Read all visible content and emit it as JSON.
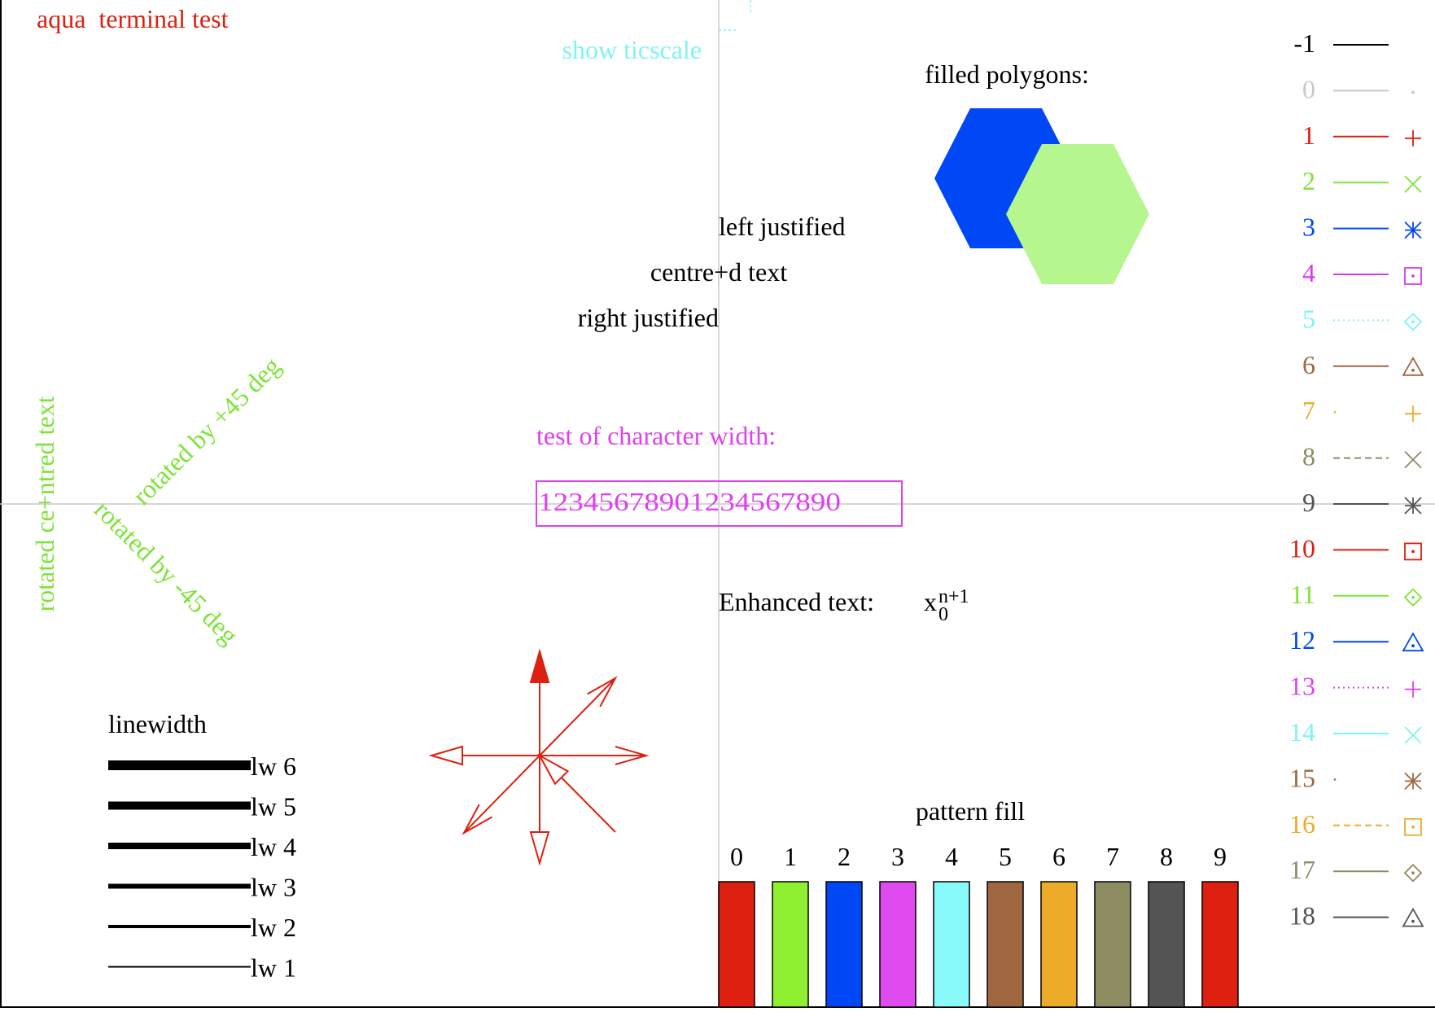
{
  "title": "aqua  terminal test",
  "ticscale_label": "show ticscale",
  "filled_polygons": {
    "label": "filled polygons:",
    "colors": [
      "#0047f5",
      "#b5f68e"
    ]
  },
  "justification": {
    "left": "left justified",
    "centre": "centre+d text",
    "right": "right justified"
  },
  "rotated_text": {
    "vertical": "rotated ce+ntred text",
    "plus45": "rotated by +45 deg",
    "minus45": "rotated by -45 deg",
    "color": "#7ee339"
  },
  "char_width": {
    "label": "test of character width:",
    "sample": "12345678901234567890",
    "color": "#e040f0"
  },
  "enhanced_text": {
    "label": "Enhanced text:",
    "base": "x",
    "subscript": "0",
    "superscript": "n+1"
  },
  "linewidth": {
    "label": "linewidth",
    "items": [
      {
        "label": "lw 6",
        "width": 6
      },
      {
        "label": "lw 5",
        "width": 5
      },
      {
        "label": "lw 4",
        "width": 4
      },
      {
        "label": "lw 3",
        "width": 3
      },
      {
        "label": "lw 2",
        "width": 2
      },
      {
        "label": "lw 1",
        "width": 1
      }
    ]
  },
  "pattern_fill": {
    "label": "pattern fill",
    "items": [
      {
        "label": "0",
        "color": "#dd2010"
      },
      {
        "label": "1",
        "color": "#8ef030"
      },
      {
        "label": "2",
        "color": "#0047f5"
      },
      {
        "label": "3",
        "color": "#e04bf0"
      },
      {
        "label": "4",
        "color": "#88fafa"
      },
      {
        "label": "5",
        "color": "#a06640"
      },
      {
        "label": "6",
        "color": "#ecac2a"
      },
      {
        "label": "7",
        "color": "#8e8c62"
      },
      {
        "label": "8",
        "color": "#545454"
      },
      {
        "label": "9",
        "color": "#dd2010"
      }
    ]
  },
  "arrow_color": "#dd2010",
  "linetypes": [
    {
      "label": "-1",
      "color": "#000000",
      "dash": "solid",
      "symbol": "none"
    },
    {
      "label": "0",
      "color": "#c8c8c8",
      "dash": "solid",
      "symbol": "dot"
    },
    {
      "label": "1",
      "color": "#dd2010",
      "dash": "solid",
      "symbol": "plus"
    },
    {
      "label": "2",
      "color": "#7ee339",
      "dash": "solid",
      "symbol": "cross"
    },
    {
      "label": "3",
      "color": "#0047f5",
      "dash": "solid",
      "symbol": "star"
    },
    {
      "label": "4",
      "color": "#d43cec",
      "dash": "solid",
      "symbol": "box"
    },
    {
      "label": "5",
      "color": "#7ef4f4",
      "dash": "dotted",
      "symbol": "diamond"
    },
    {
      "label": "6",
      "color": "#a06640",
      "dash": "solid",
      "symbol": "triangle"
    },
    {
      "label": "7",
      "color": "#ecac2a",
      "dash": "point",
      "symbol": "plus"
    },
    {
      "label": "8",
      "color": "#8e8c62",
      "dash": "dashed",
      "symbol": "cross"
    },
    {
      "label": "9",
      "color": "#545454",
      "dash": "solid",
      "symbol": "star"
    },
    {
      "label": "10",
      "color": "#dd2010",
      "dash": "solid",
      "symbol": "box"
    },
    {
      "label": "11",
      "color": "#7ee339",
      "dash": "solid",
      "symbol": "diamond"
    },
    {
      "label": "12",
      "color": "#0047f5",
      "dash": "solid",
      "symbol": "triangle"
    },
    {
      "label": "13",
      "color": "#e040f0",
      "dash": "dotted",
      "symbol": "plus"
    },
    {
      "label": "14",
      "color": "#7ef4f4",
      "dash": "solid",
      "symbol": "cross"
    },
    {
      "label": "15",
      "color": "#a06640",
      "dash": "point",
      "symbol": "star"
    },
    {
      "label": "16",
      "color": "#ecac2a",
      "dash": "dashed",
      "symbol": "box"
    },
    {
      "label": "17",
      "color": "#8e8c62",
      "dash": "solid",
      "symbol": "diamond"
    },
    {
      "label": "18",
      "color": "#545454",
      "dash": "solid",
      "symbol": "triangle"
    }
  ]
}
